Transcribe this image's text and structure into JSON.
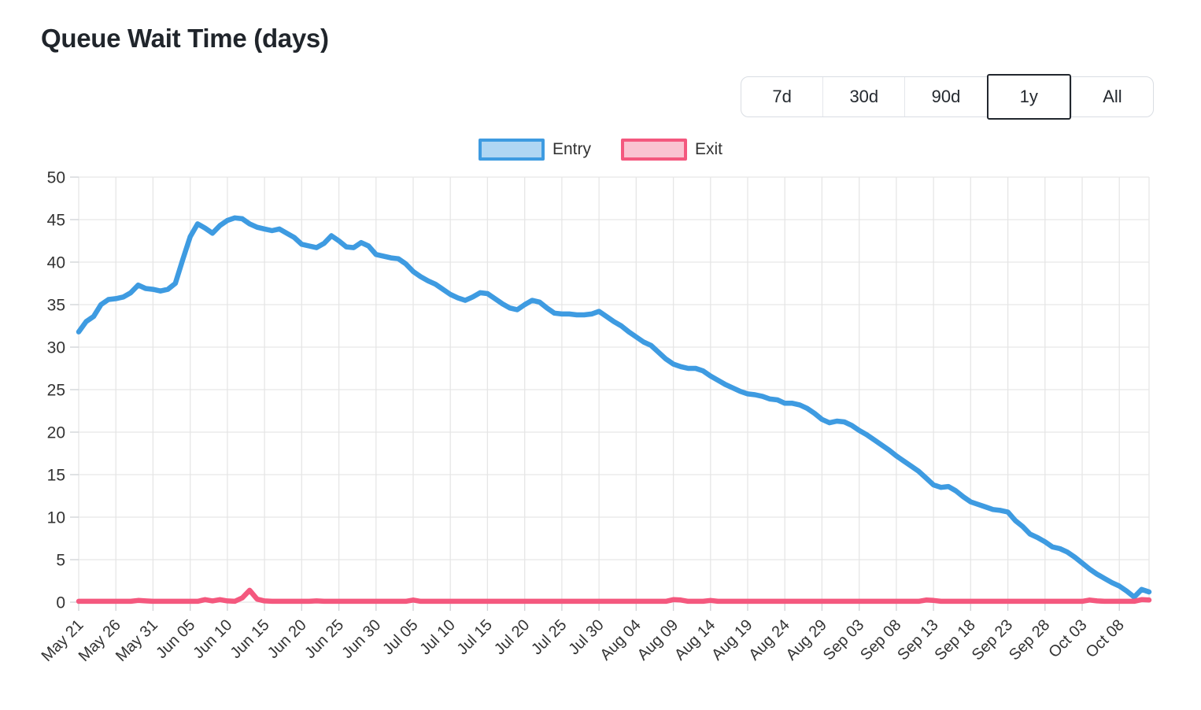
{
  "title": "Queue Wait Time (days)",
  "range_buttons": {
    "options": [
      "7d",
      "30d",
      "90d",
      "1y",
      "All"
    ],
    "selected": "1y"
  },
  "legend": [
    {
      "label": "Entry",
      "color": "#3e9be1",
      "fill": "#afd6f3"
    },
    {
      "label": "Exit",
      "color": "#f4587e",
      "fill": "#fac3d1"
    }
  ],
  "chart_data": {
    "type": "line",
    "title": "Queue Wait Time (days)",
    "xlabel": "",
    "ylabel": "",
    "ylim": [
      0,
      50
    ],
    "y_ticks": [
      0,
      5,
      10,
      15,
      20,
      25,
      30,
      35,
      40,
      45,
      50
    ],
    "grid": true,
    "legend_position": "top",
    "x_interval": "daily",
    "x_start": "May 21",
    "x_end": "Oct 12",
    "points_per_tick": 5,
    "x_tick_labels": [
      "May 21",
      "May 26",
      "May 31",
      "Jun 05",
      "Jun 10",
      "Jun 15",
      "Jun 20",
      "Jun 25",
      "Jun 30",
      "Jul 05",
      "Jul 10",
      "Jul 15",
      "Jul 20",
      "Jul 25",
      "Jul 30",
      "Aug 04",
      "Aug 09",
      "Aug 14",
      "Aug 19",
      "Aug 24",
      "Aug 29",
      "Sep 03",
      "Sep 08",
      "Sep 13",
      "Sep 18",
      "Sep 23",
      "Sep 28",
      "Oct 03",
      "Oct 08"
    ],
    "series": [
      {
        "name": "Entry",
        "color": "#3e9be1",
        "fill_color": "#afd6f3",
        "values": [
          31.8,
          33.0,
          33.6,
          35.0,
          35.6,
          35.7,
          35.9,
          36.4,
          37.3,
          36.9,
          36.8,
          36.6,
          36.8,
          37.5,
          40.3,
          43.0,
          44.5,
          44.0,
          43.4,
          44.3,
          44.9,
          45.2,
          45.1,
          44.5,
          44.1,
          43.9,
          43.7,
          43.9,
          43.4,
          42.9,
          42.1,
          41.9,
          41.7,
          42.2,
          43.1,
          42.5,
          41.8,
          41.7,
          42.3,
          41.9,
          40.9,
          40.7,
          40.5,
          40.4,
          39.8,
          38.9,
          38.3,
          37.8,
          37.4,
          36.8,
          36.2,
          35.8,
          35.5,
          35.9,
          36.4,
          36.3,
          35.7,
          35.1,
          34.6,
          34.4,
          35.0,
          35.5,
          35.3,
          34.6,
          34.0,
          33.9,
          33.9,
          33.8,
          33.8,
          33.9,
          34.2,
          33.6,
          33.0,
          32.5,
          31.8,
          31.2,
          30.6,
          30.2,
          29.4,
          28.6,
          28.0,
          27.7,
          27.5,
          27.5,
          27.2,
          26.6,
          26.1,
          25.6,
          25.2,
          24.8,
          24.5,
          24.4,
          24.2,
          23.9,
          23.8,
          23.4,
          23.4,
          23.2,
          22.8,
          22.2,
          21.5,
          21.1,
          21.3,
          21.2,
          20.8,
          20.2,
          19.7,
          19.1,
          18.5,
          17.9,
          17.2,
          16.6,
          16.0,
          15.4,
          14.6,
          13.8,
          13.5,
          13.6,
          13.1,
          12.4,
          11.8,
          11.5,
          11.2,
          10.9,
          10.8,
          10.6,
          9.6,
          8.9,
          8.0,
          7.6,
          7.1,
          6.5,
          6.3,
          5.9,
          5.3,
          4.6,
          3.9,
          3.3,
          2.8,
          2.3,
          1.9,
          1.3,
          0.6,
          1.5,
          1.2
        ]
      },
      {
        "name": "Exit",
        "color": "#f4587e",
        "fill_color": "#fac3d1",
        "values": [
          0.1,
          0.1,
          0.1,
          0.1,
          0.1,
          0.1,
          0.1,
          0.1,
          0.2,
          0.15,
          0.1,
          0.1,
          0.1,
          0.1,
          0.1,
          0.1,
          0.1,
          0.3,
          0.15,
          0.3,
          0.15,
          0.1,
          0.5,
          1.4,
          0.35,
          0.15,
          0.1,
          0.1,
          0.1,
          0.1,
          0.1,
          0.1,
          0.15,
          0.1,
          0.1,
          0.1,
          0.1,
          0.1,
          0.1,
          0.1,
          0.1,
          0.1,
          0.1,
          0.1,
          0.1,
          0.25,
          0.1,
          0.1,
          0.1,
          0.1,
          0.1,
          0.1,
          0.1,
          0.1,
          0.1,
          0.1,
          0.1,
          0.1,
          0.1,
          0.1,
          0.1,
          0.1,
          0.1,
          0.1,
          0.1,
          0.1,
          0.1,
          0.1,
          0.1,
          0.1,
          0.1,
          0.1,
          0.1,
          0.1,
          0.1,
          0.1,
          0.1,
          0.1,
          0.1,
          0.1,
          0.3,
          0.25,
          0.1,
          0.1,
          0.1,
          0.2,
          0.1,
          0.1,
          0.1,
          0.1,
          0.1,
          0.1,
          0.1,
          0.1,
          0.1,
          0.1,
          0.1,
          0.1,
          0.1,
          0.1,
          0.1,
          0.1,
          0.1,
          0.1,
          0.1,
          0.1,
          0.1,
          0.1,
          0.1,
          0.1,
          0.1,
          0.1,
          0.1,
          0.1,
          0.25,
          0.2,
          0.1,
          0.1,
          0.1,
          0.1,
          0.1,
          0.1,
          0.1,
          0.1,
          0.1,
          0.1,
          0.1,
          0.1,
          0.1,
          0.1,
          0.1,
          0.1,
          0.1,
          0.1,
          0.1,
          0.1,
          0.25,
          0.15,
          0.1,
          0.1,
          0.1,
          0.1,
          0.1,
          0.3,
          0.25
        ]
      }
    ]
  }
}
